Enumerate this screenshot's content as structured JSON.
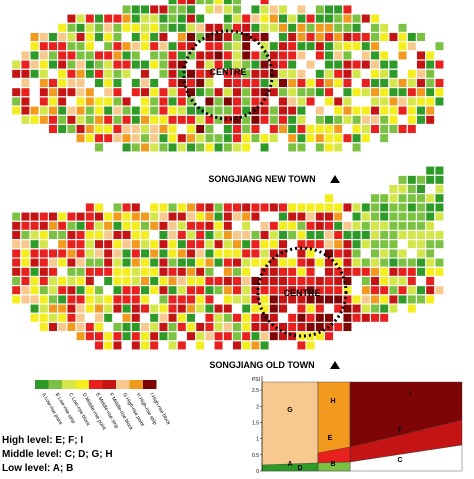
{
  "maps": [
    {
      "caption": "SONGJIANG NEW TOWN",
      "centre": "CENTRE"
    },
    {
      "caption": "SONGJIANG OLD TOWN",
      "centre": "CENTRE"
    }
  ],
  "legend": {
    "items": [
      {
        "label": "A Low-rise point",
        "color": "#2e9a27"
      },
      {
        "label": "B Low-rise strip",
        "color": "#7cc242"
      },
      {
        "label": "C Low-rise block",
        "color": "#d3e64a"
      },
      {
        "label": "D Middle-rise point",
        "color": "#f4ee1e"
      },
      {
        "label": "E Middle-rise strip",
        "color": "#e8201e"
      },
      {
        "label": "F Middle-rise block",
        "color": "#c41414"
      },
      {
        "label": "G High-rise point",
        "color": "#f7c98f"
      },
      {
        "label": "H High-rise strip",
        "color": "#f29a1e"
      },
      {
        "label": "I High-rise block",
        "color": "#7e0505"
      }
    ],
    "levels": [
      "High level: E; F; I",
      "Middle level: C; D; G; H",
      "Low level: A; B"
    ]
  },
  "psi_chart": {
    "axis_label": "PSI",
    "ylim": [
      0,
      2.75
    ],
    "yticks": [
      0,
      0.5,
      1,
      1.5,
      2,
      2.5
    ],
    "regions": [
      "G",
      "H",
      "I",
      "E",
      "F",
      "A",
      "B",
      "C",
      "D"
    ]
  }
}
